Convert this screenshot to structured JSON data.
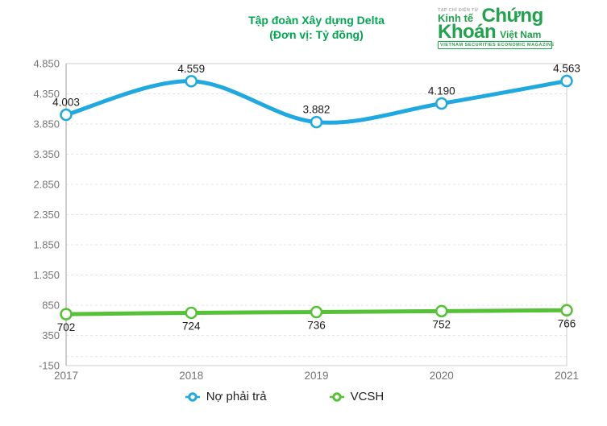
{
  "title": {
    "line1": "Tập đoàn Xây dựng Delta",
    "line2": "(Đơn vị: Tỷ đồng)"
  },
  "logo": {
    "tagline": "TẠP CHÍ ĐIỆN TỬ",
    "word_kinh_te": "Kinh tế",
    "word_chung": "Chứng",
    "word_khoan": "Khoán",
    "word_viet_nam": "Việt Nam",
    "banner": "VIETNAM SECURITIES ECONOMIC MAGAZINE",
    "color": "#21a24c"
  },
  "colors": {
    "title_green": "#00a651",
    "liabilities_blue": "#20a8e0",
    "equity_green": "#55c136",
    "axis_text": "#757575",
    "data_label": "#1a1a1a",
    "grid": "#e4e4e4",
    "plot_border": "#cccccc",
    "y_axis_line": "#9e9e9e"
  },
  "chart_data": {
    "type": "line",
    "title": "Tập đoàn Xây dựng Delta (Đơn vị: Tỷ đồng)",
    "categories": [
      "2017",
      "2018",
      "2019",
      "2020",
      "2021"
    ],
    "series": [
      {
        "name": "Nợ phải trả",
        "color": "#20a8e0",
        "values": [
          4003,
          4559,
          3882,
          4190,
          4563
        ],
        "labels": [
          "4.003",
          "4.559",
          "3.882",
          "4.190",
          "4.563"
        ],
        "label_position": "above"
      },
      {
        "name": "VCSH",
        "color": "#55c136",
        "values": [
          702,
          724,
          736,
          752,
          766
        ],
        "labels": [
          "702",
          "724",
          "736",
          "752",
          "766"
        ],
        "label_position": "below"
      }
    ],
    "ylim": [
      -150,
      4850
    ],
    "yticks": [
      {
        "value": 4850,
        "label": "4.850"
      },
      {
        "value": 4350,
        "label": "4.350"
      },
      {
        "value": 3850,
        "label": "3.850"
      },
      {
        "value": 3350,
        "label": "3.350"
      },
      {
        "value": 2850,
        "label": "2.850"
      },
      {
        "value": 2350,
        "label": "2.350"
      },
      {
        "value": 1850,
        "label": "1.850"
      },
      {
        "value": 1350,
        "label": "1.350"
      },
      {
        "value": 850,
        "label": "850"
      },
      {
        "value": 350,
        "label": "350"
      },
      {
        "value": -150,
        "label": "-150"
      }
    ],
    "baseline": 0,
    "grid": "horizontal-dashed",
    "legend_position": "bottom",
    "curve": "smooth"
  }
}
